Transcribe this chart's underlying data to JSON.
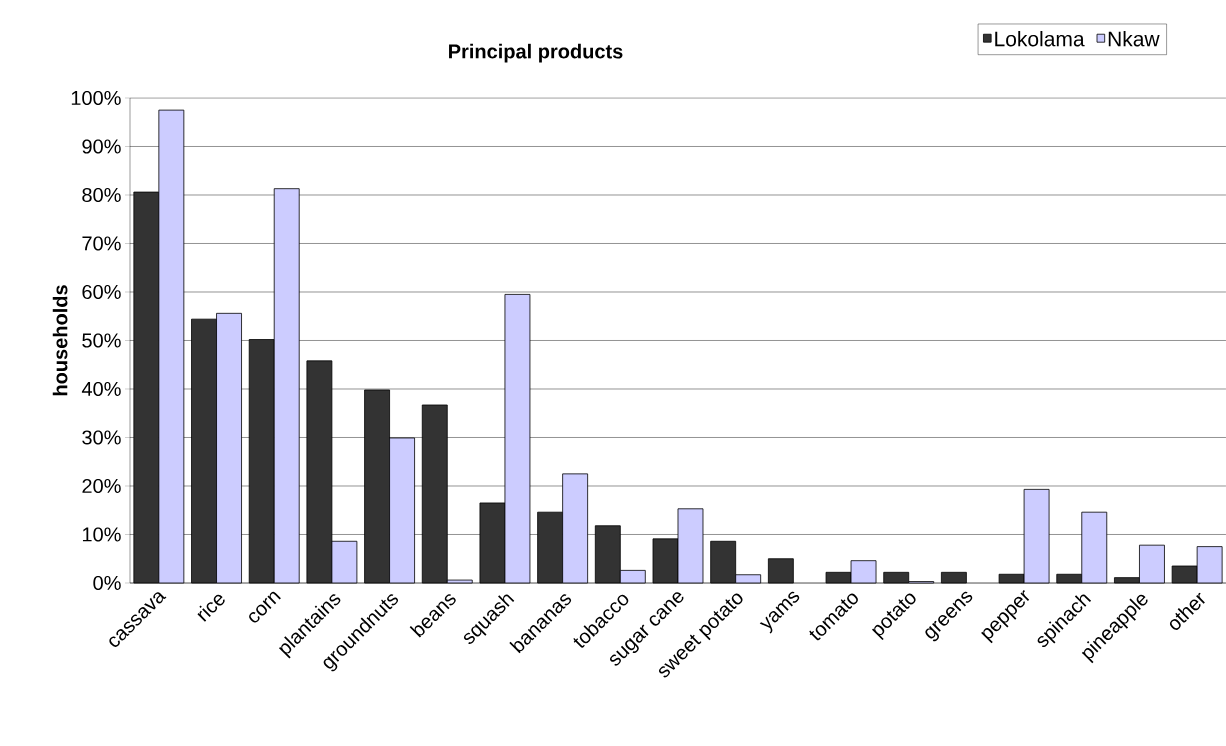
{
  "chart_data": {
    "type": "bar",
    "title": "Principal products",
    "ylabel": "households",
    "categories": [
      "cassava",
      "rice",
      "corn",
      "plantains",
      "groundnuts",
      "beans",
      "squash",
      "bananas",
      "tobacco",
      "sugar cane",
      "sweet potato",
      "yams",
      "tomato",
      "potato",
      "greens",
      "pepper",
      "spinach",
      "pineapple",
      "other"
    ],
    "series": [
      {
        "name": "Lokolama",
        "color": "#333333",
        "values": [
          80.6,
          54.4,
          50.2,
          45.8,
          39.8,
          36.7,
          16.5,
          14.6,
          11.8,
          9.1,
          8.6,
          5.0,
          2.2,
          2.2,
          2.2,
          1.8,
          1.8,
          1.1,
          3.5
        ]
      },
      {
        "name": "Nkaw",
        "color": "#ccccff",
        "values": [
          97.5,
          55.6,
          81.3,
          8.6,
          29.9,
          0.6,
          59.5,
          22.5,
          2.6,
          15.3,
          1.7,
          null,
          4.6,
          0.3,
          null,
          19.3,
          14.6,
          7.8,
          7.5
        ]
      }
    ],
    "ylim": [
      0,
      100
    ],
    "yticks": [
      {
        "value": 0,
        "label": "0%"
      },
      {
        "value": 10,
        "label": "10%"
      },
      {
        "value": 20,
        "label": "20%"
      },
      {
        "value": 30,
        "label": "30%"
      },
      {
        "value": 40,
        "label": "40%"
      },
      {
        "value": 50,
        "label": "50%"
      },
      {
        "value": 60,
        "label": "60%"
      },
      {
        "value": 70,
        "label": "70%"
      },
      {
        "value": 80,
        "label": "80%"
      },
      {
        "value": 90,
        "label": "90%"
      },
      {
        "value": 100,
        "label": "100%"
      }
    ],
    "grid": "y",
    "legend": "top right"
  }
}
